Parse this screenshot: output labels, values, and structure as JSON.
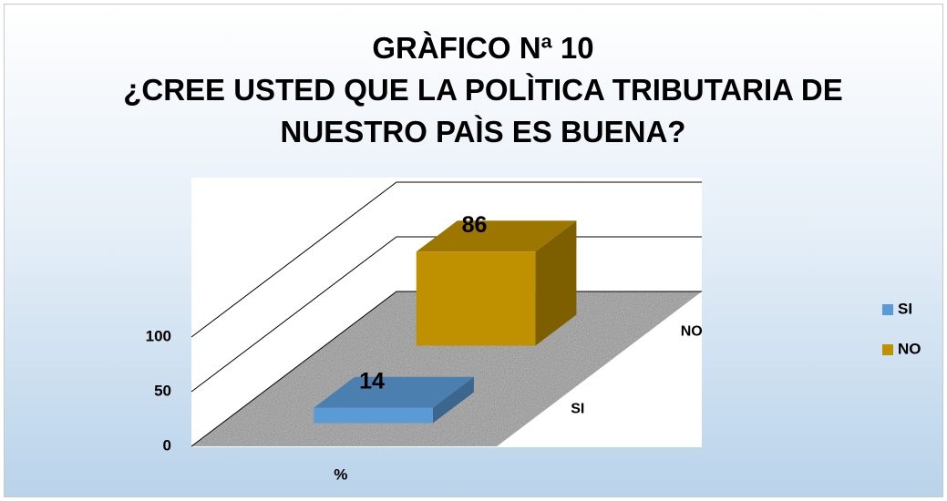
{
  "chart_data": {
    "type": "bar3d",
    "title": "GRÀFICO Nª 10",
    "subtitle": "¿CREE USTED QUE LA POLÌTICA TRIBUTARIA DE NUESTRO PAÌS ES BUENA?",
    "categories": [
      "%"
    ],
    "series": [
      {
        "name": "SI",
        "color": "#5b9bd5",
        "values": [
          14
        ]
      },
      {
        "name": "NO",
        "color": "#bf9000",
        "values": [
          86
        ]
      }
    ],
    "ylim": [
      0,
      100
    ],
    "yticks": [
      0,
      50,
      100
    ],
    "grid": true,
    "legend": "right"
  }
}
